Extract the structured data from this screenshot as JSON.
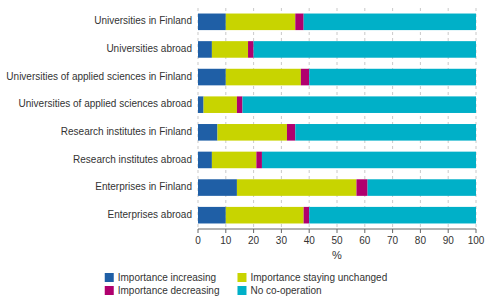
{
  "chart_data": {
    "type": "bar",
    "orientation": "horizontal",
    "stacked": true,
    "categories": [
      "Universities in Finland",
      "Universities abroad",
      "Universities of applied sciences in Finland",
      "Universities of applied sciences abroad",
      "Research institutes in Finland",
      "Research institutes abroad",
      "Enterprises in Finland",
      "Enterprises abroad"
    ],
    "series": [
      {
        "name": "Importance increasing",
        "color": "#1f5fa6",
        "values": [
          10,
          5,
          10,
          2,
          7,
          5,
          14,
          10
        ]
      },
      {
        "name": "Importance staying unchanged",
        "color": "#c8d400",
        "values": [
          25,
          13,
          27,
          12,
          25,
          16,
          43,
          28
        ]
      },
      {
        "name": "Importance decreasing",
        "color": "#b0006e",
        "values": [
          3,
          2,
          3,
          2,
          3,
          2,
          4,
          2
        ]
      },
      {
        "name": "No co-operation",
        "color": "#00b0c8",
        "values": [
          62,
          80,
          60,
          84,
          65,
          77,
          39,
          60
        ]
      }
    ],
    "xlabel": "%",
    "xlim": [
      0,
      100
    ],
    "xticks": [
      0,
      10,
      20,
      30,
      40,
      50,
      60,
      70,
      80,
      90,
      100
    ],
    "grid": true,
    "legend": "bottom"
  }
}
